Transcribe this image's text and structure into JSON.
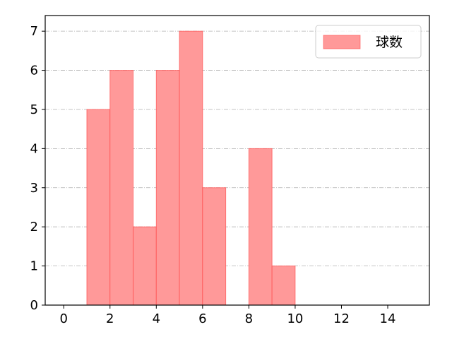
{
  "chart_data": {
    "type": "bar",
    "histogram": true,
    "bins": [
      [
        1,
        2
      ],
      [
        2,
        3
      ],
      [
        3,
        4
      ],
      [
        4,
        5
      ],
      [
        5,
        6
      ],
      [
        6,
        7
      ],
      [
        8,
        9
      ],
      [
        9,
        10
      ]
    ],
    "values": [
      5,
      6,
      2,
      6,
      7,
      3,
      4,
      1
    ],
    "series": [
      {
        "name": "球数"
      }
    ],
    "xlim": [
      -0.8,
      15.8
    ],
    "ylim": [
      0,
      7.4
    ],
    "xticks": [
      0,
      2,
      4,
      6,
      8,
      10,
      12,
      14
    ],
    "yticks": [
      0,
      1,
      2,
      3,
      4,
      5,
      6,
      7
    ],
    "grid": "y, dash-dot",
    "legend": "top-right",
    "colors": {
      "bar_fill": "#ff9999",
      "bar_edge": "#ff4d4d",
      "grid": "#b0b0b0"
    }
  }
}
